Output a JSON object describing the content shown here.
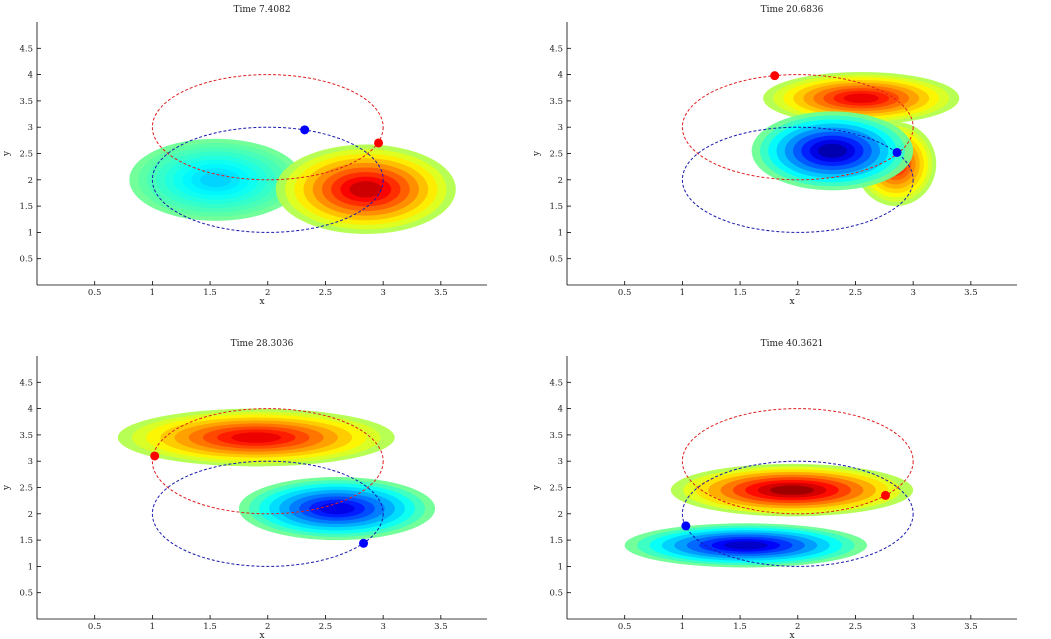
{
  "chart_data": [
    {
      "type": "heatmap",
      "title": "Time 7.4082",
      "xlabel": "x",
      "ylabel": "y",
      "xlim": [
        0,
        3.9
      ],
      "ylim": [
        0,
        5
      ],
      "xticks": [
        "0.5",
        "1",
        "1.5",
        "2",
        "2.5",
        "3",
        "3.5"
      ],
      "yticks": [
        "0.5",
        "1",
        "1.5",
        "2",
        "2.5",
        "3",
        "3.5",
        "4",
        "4.5"
      ],
      "colormap": "jet",
      "blobs": [
        {
          "x": 1.55,
          "y": 2.0,
          "rx": 0.75,
          "ry": 0.78,
          "value": 0.35
        },
        {
          "x": 2.85,
          "y": 1.82,
          "rx": 0.78,
          "ry": 0.85,
          "value": 0.88
        }
      ],
      "ellipses": [
        {
          "cx": 2,
          "cy": 3,
          "rx": 1,
          "ry": 1,
          "color": "#e02020"
        },
        {
          "cx": 2,
          "cy": 2,
          "rx": 1,
          "ry": 1,
          "color": "#1a1ab0"
        }
      ],
      "points": [
        {
          "x": 2.32,
          "y": 2.95,
          "color": "#0000ff"
        },
        {
          "x": 2.96,
          "y": 2.7,
          "color": "#ff0000"
        }
      ]
    },
    {
      "type": "heatmap",
      "title": "Time 20.6836",
      "xlabel": "x",
      "ylabel": "y",
      "xlim": [
        0,
        3.9
      ],
      "ylim": [
        0,
        5
      ],
      "xticks": [
        "0.5",
        "1",
        "1.5",
        "2",
        "2.5",
        "3",
        "3.5"
      ],
      "yticks": [
        "0.5",
        "1",
        "1.5",
        "2",
        "2.5",
        "3",
        "3.5",
        "4",
        "4.5"
      ],
      "colormap": "jet",
      "blobs": [
        {
          "x": 2.55,
          "y": 3.55,
          "rx": 0.85,
          "ry": 0.5,
          "value": 0.85
        },
        {
          "x": 2.85,
          "y": 2.3,
          "rx": 0.35,
          "ry": 0.8,
          "value": 0.82
        },
        {
          "x": 2.3,
          "y": 2.55,
          "rx": 0.7,
          "ry": 0.75,
          "value": 0.1
        }
      ],
      "ellipses": [
        {
          "cx": 2,
          "cy": 3,
          "rx": 1,
          "ry": 1,
          "color": "#e02020"
        },
        {
          "cx": 2,
          "cy": 2,
          "rx": 1,
          "ry": 1,
          "color": "#1a1ab0"
        }
      ],
      "points": [
        {
          "x": 1.8,
          "y": 3.98,
          "color": "#ff0000"
        },
        {
          "x": 2.86,
          "y": 2.52,
          "color": "#0000ff"
        }
      ]
    },
    {
      "type": "heatmap",
      "title": "Time 28.3036",
      "xlabel": "x",
      "ylabel": "y",
      "xlim": [
        0,
        3.9
      ],
      "ylim": [
        0,
        5
      ],
      "xticks": [
        "0.5",
        "1",
        "1.5",
        "2",
        "2.5",
        "3",
        "3.5"
      ],
      "yticks": [
        "0.5",
        "1",
        "1.5",
        "2",
        "2.5",
        "3",
        "3.5",
        "4",
        "4.5"
      ],
      "colormap": "jet",
      "blobs": [
        {
          "x": 1.9,
          "y": 3.45,
          "rx": 1.2,
          "ry": 0.55,
          "value": 0.85
        },
        {
          "x": 2.6,
          "y": 2.1,
          "rx": 0.85,
          "ry": 0.6,
          "value": 0.15
        }
      ],
      "ellipses": [
        {
          "cx": 2,
          "cy": 3,
          "rx": 1,
          "ry": 1,
          "color": "#e02020"
        },
        {
          "cx": 2,
          "cy": 2,
          "rx": 1,
          "ry": 1,
          "color": "#1a1ab0"
        }
      ],
      "points": [
        {
          "x": 1.02,
          "y": 3.1,
          "color": "#ff0000"
        },
        {
          "x": 2.83,
          "y": 1.44,
          "color": "#0000ff"
        }
      ]
    },
    {
      "type": "heatmap",
      "title": "Time 40.3621",
      "xlabel": "x",
      "ylabel": "y",
      "xlim": [
        0,
        3.9
      ],
      "ylim": [
        0,
        5
      ],
      "xticks": [
        "0.5",
        "1",
        "1.5",
        "2",
        "2.5",
        "3",
        "3.5"
      ],
      "yticks": [
        "0.5",
        "1",
        "1.5",
        "2",
        "2.5",
        "3",
        "3.5",
        "4",
        "4.5"
      ],
      "colormap": "jet",
      "blobs": [
        {
          "x": 1.95,
          "y": 2.45,
          "rx": 1.05,
          "ry": 0.5,
          "value": 0.92
        },
        {
          "x": 1.55,
          "y": 1.4,
          "rx": 1.05,
          "ry": 0.42,
          "value": 0.12
        }
      ],
      "ellipses": [
        {
          "cx": 2,
          "cy": 3,
          "rx": 1,
          "ry": 1,
          "color": "#e02020"
        },
        {
          "cx": 2,
          "cy": 2,
          "rx": 1,
          "ry": 1,
          "color": "#1a1ab0"
        }
      ],
      "points": [
        {
          "x": 1.03,
          "y": 1.77,
          "color": "#0000ff"
        },
        {
          "x": 2.76,
          "y": 2.35,
          "color": "#ff0000"
        }
      ]
    }
  ]
}
